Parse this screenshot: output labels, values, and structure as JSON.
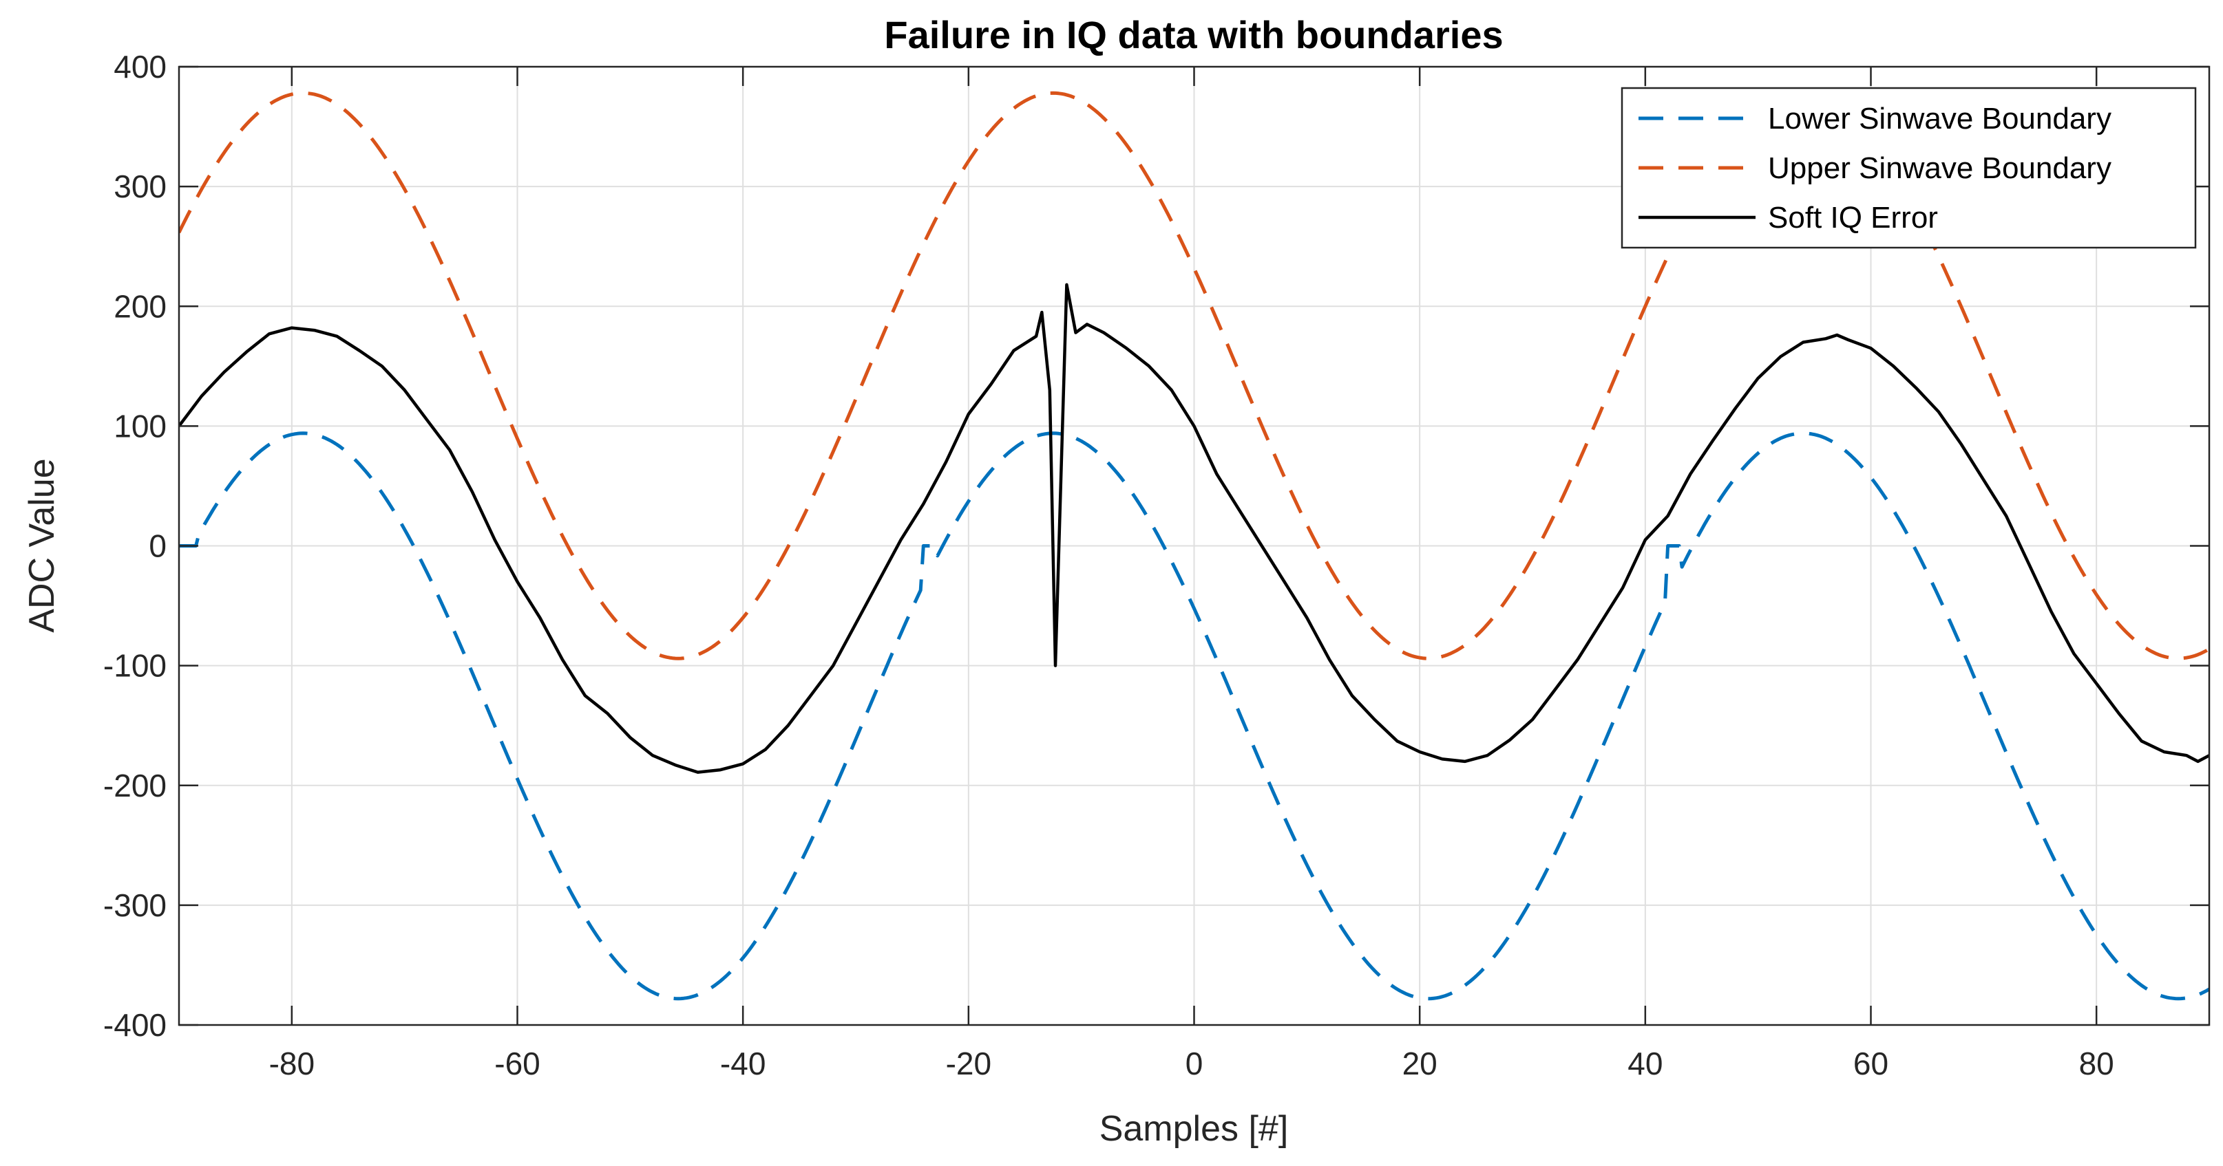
{
  "chart_data": {
    "type": "line",
    "title": "Failure in IQ data with boundaries",
    "xlabel": "Samples [#]",
    "ylabel": "ADC Value",
    "xlim": [
      -90,
      90
    ],
    "ylim": [
      -400,
      400
    ],
    "xticks": [
      -80,
      -60,
      -40,
      -20,
      0,
      20,
      40,
      60,
      80
    ],
    "yticks": [
      -400,
      -300,
      -200,
      -100,
      0,
      100,
      200,
      300,
      400
    ],
    "grid": true,
    "legend_position": "top-right",
    "period": 66.5,
    "series": [
      {
        "name": "Lower Sinwave Boundary",
        "color": "#0072BD",
        "style": "dashed",
        "model": {
          "center": -142,
          "amplitude": 236,
          "peak_x": -79
        },
        "clip_top": 95,
        "zero_flat_segments": [
          [
            -90,
            -88.5
          ],
          [
            -24,
            -23
          ],
          [
            42,
            43
          ]
        ]
      },
      {
        "name": "Upper Sinwave Boundary",
        "color": "#D95319",
        "style": "dashed",
        "model": {
          "center": 142,
          "amplitude": 236,
          "peak_x": -79
        },
        "clip_bottom": -95
      },
      {
        "name": "Soft IQ Error",
        "color": "#000000",
        "style": "solid",
        "points": [
          [
            -90,
            100
          ],
          [
            -88,
            125
          ],
          [
            -86,
            145
          ],
          [
            -84,
            162
          ],
          [
            -82,
            177
          ],
          [
            -80,
            182
          ],
          [
            -78,
            180
          ],
          [
            -76,
            175
          ],
          [
            -74,
            163
          ],
          [
            -72,
            150
          ],
          [
            -70,
            130
          ],
          [
            -68,
            105
          ],
          [
            -66,
            80
          ],
          [
            -64,
            45
          ],
          [
            -62,
            5
          ],
          [
            -60,
            -30
          ],
          [
            -58,
            -60
          ],
          [
            -56,
            -95
          ],
          [
            -54,
            -125
          ],
          [
            -52,
            -140
          ],
          [
            -50,
            -160
          ],
          [
            -48,
            -175
          ],
          [
            -46,
            -183
          ],
          [
            -44,
            -189
          ],
          [
            -42,
            -187
          ],
          [
            -40,
            -182
          ],
          [
            -38,
            -170
          ],
          [
            -36,
            -150
          ],
          [
            -34,
            -125
          ],
          [
            -32,
            -100
          ],
          [
            -30,
            -65
          ],
          [
            -28,
            -30
          ],
          [
            -26,
            5
          ],
          [
            -24,
            35
          ],
          [
            -22,
            70
          ],
          [
            -20,
            110
          ],
          [
            -18,
            135
          ],
          [
            -16,
            163
          ],
          [
            -14,
            175
          ],
          [
            -13.5,
            195
          ],
          [
            -12.8,
            130
          ],
          [
            -12.3,
            -100
          ],
          [
            -11.3,
            218
          ],
          [
            -10.5,
            178
          ],
          [
            -9.5,
            185
          ],
          [
            -8,
            178
          ],
          [
            -6,
            165
          ],
          [
            -4,
            150
          ],
          [
            -2,
            130
          ],
          [
            0,
            100
          ],
          [
            2,
            60
          ],
          [
            4,
            30
          ],
          [
            6,
            0
          ],
          [
            8,
            -30
          ],
          [
            10,
            -60
          ],
          [
            12,
            -95
          ],
          [
            14,
            -125
          ],
          [
            16,
            -145
          ],
          [
            18,
            -163
          ],
          [
            20,
            -172
          ],
          [
            22,
            -178
          ],
          [
            24,
            -180
          ],
          [
            26,
            -175
          ],
          [
            28,
            -162
          ],
          [
            30,
            -145
          ],
          [
            32,
            -120
          ],
          [
            34,
            -95
          ],
          [
            36,
            -65
          ],
          [
            38,
            -35
          ],
          [
            40,
            5
          ],
          [
            42,
            25
          ],
          [
            44,
            60
          ],
          [
            46,
            88
          ],
          [
            48,
            115
          ],
          [
            50,
            140
          ],
          [
            52,
            158
          ],
          [
            54,
            170
          ],
          [
            56,
            173
          ],
          [
            57,
            176
          ],
          [
            58,
            172
          ],
          [
            60,
            165
          ],
          [
            62,
            150
          ],
          [
            64,
            132
          ],
          [
            66,
            112
          ],
          [
            68,
            85
          ],
          [
            70,
            55
          ],
          [
            72,
            25
          ],
          [
            74,
            -15
          ],
          [
            76,
            -55
          ],
          [
            78,
            -90
          ],
          [
            80,
            -115
          ],
          [
            82,
            -140
          ],
          [
            84,
            -163
          ],
          [
            86,
            -172
          ],
          [
            88,
            -175
          ],
          [
            89,
            -180
          ],
          [
            90,
            -175
          ]
        ]
      }
    ]
  }
}
